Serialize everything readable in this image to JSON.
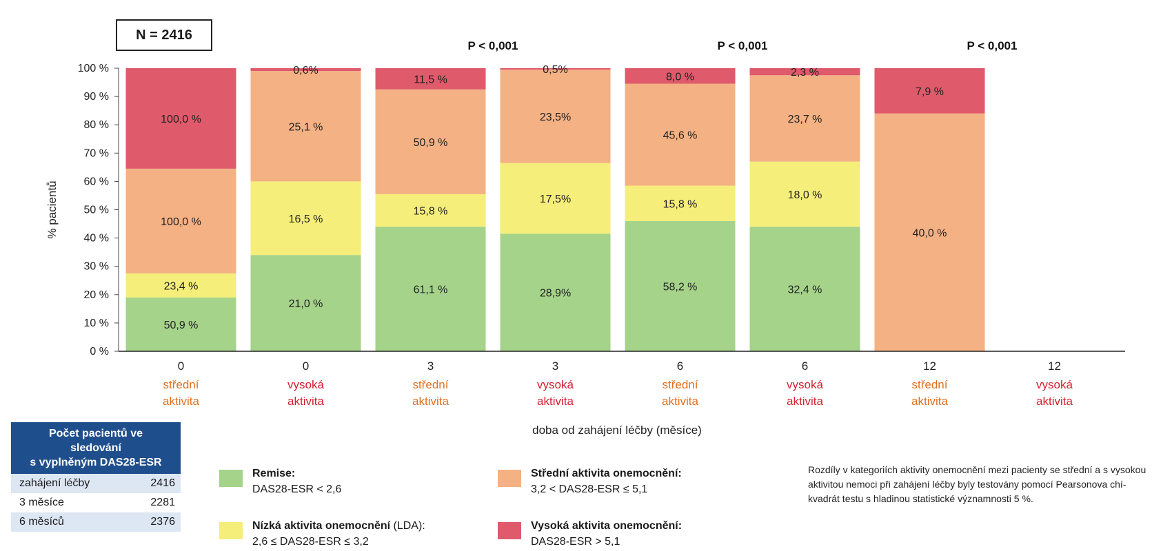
{
  "n_box": "N = 2416",
  "chart_data": {
    "type": "bar",
    "stacked": true,
    "ylabel": "% pacientů",
    "xlabel": "doba od zahájení léčby (měsíce)",
    "ylim": [
      0,
      100
    ],
    "yticks": [
      "0 %",
      "10 %",
      "20 %",
      "30 %",
      "40 %",
      "50 %",
      "60 %",
      "70 %",
      "80 %",
      "90 %",
      "100 %"
    ],
    "categories": [
      {
        "month": "0",
        "group": "střední aktivita",
        "group_lines": [
          "střední",
          "aktivita"
        ],
        "group_color": "#e07020"
      },
      {
        "month": "0",
        "group": "vysoká aktivita",
        "group_lines": [
          "vysoká",
          "aktivita"
        ],
        "group_color": "#d42030"
      },
      {
        "month": "3",
        "group": "střední aktivita",
        "group_lines": [
          "střední",
          "aktivita"
        ],
        "group_color": "#e07020"
      },
      {
        "month": "3",
        "group": "vysoká aktivita",
        "group_lines": [
          "vysoká",
          "aktivita"
        ],
        "group_color": "#d42030"
      },
      {
        "month": "6",
        "group": "střední aktivita",
        "group_lines": [
          "střední",
          "aktivita"
        ],
        "group_color": "#e07020"
      },
      {
        "month": "6",
        "group": "vysoká aktivita",
        "group_lines": [
          "vysoká",
          "aktivita"
        ],
        "group_color": "#d42030"
      },
      {
        "month": "12",
        "group": "střední aktivita",
        "group_lines": [
          "střední",
          "aktivita"
        ],
        "group_color": "#e07020"
      },
      {
        "month": "12",
        "group": "vysoká aktivita",
        "group_lines": [
          "vysoká",
          "aktivita"
        ],
        "group_color": "#d42030"
      }
    ],
    "series": [
      {
        "name": "Remise",
        "color": "#a5d38a",
        "values": [
          19,
          34,
          44,
          41.5,
          46,
          44,
          0,
          0
        ],
        "labels": [
          "50,9 %",
          "21,0 %",
          "61,1 %",
          "28,9%",
          "58,2 %",
          "32,4 %",
          "",
          ""
        ]
      },
      {
        "name": "Nízká aktivita onemocnění",
        "color": "#f5ee7a",
        "values": [
          8.5,
          26,
          11.5,
          25,
          12.5,
          23,
          0,
          0
        ],
        "labels": [
          "23,4 %",
          "16,5 %",
          "15,8 %",
          "17,5%",
          "15,8 %",
          "18,0 %",
          "",
          ""
        ]
      },
      {
        "name": "Střední aktivita onemocnění",
        "color": "#f4b183",
        "values": [
          37,
          39,
          37,
          33,
          36,
          30.5,
          84,
          0
        ],
        "labels": [
          "100,0 %",
          "25,1 %",
          "50,9 %",
          "23,5%",
          "45,6 %",
          "23,7 %",
          "40,0 %",
          ""
        ]
      },
      {
        "name": "Vysoká aktivita onemocnění",
        "color": "#df5a6b",
        "values": [
          35.5,
          1,
          7.5,
          0.5,
          5.5,
          2.5,
          16,
          0
        ],
        "labels": [
          "100,0 %",
          "0,6%",
          "11,5 %",
          "0,5%",
          "8,0 %",
          "2,3 %",
          "7,9 %",
          ""
        ]
      }
    ],
    "p_values": [
      {
        "text": "P < 0,001",
        "month": "3"
      },
      {
        "text": "P < 0,001",
        "month": "6"
      },
      {
        "text": "P < 0,001",
        "month": "12"
      }
    ]
  },
  "count_table": {
    "header": [
      "Počet pacientů ve",
      "sledování",
      "s vyplněným DAS28-ESR"
    ],
    "rows": [
      {
        "label": "zahájení léčby",
        "value": "2416"
      },
      {
        "label": "3 měsíce",
        "value": "2281"
      },
      {
        "label": "6 měsíců",
        "value": "2376"
      }
    ]
  },
  "legend": [
    {
      "name": "Remise:",
      "detail": "DAS28-ESR < 2,6",
      "color": "#a5d38a"
    },
    {
      "name": "Nízká aktivita onemocnění",
      "suffix": " (LDA):",
      "detail": "2,6 ≤ DAS28-ESR ≤ 3,2",
      "color": "#f5ee7a"
    },
    {
      "name": "Střední aktivita onemocnění:",
      "detail": "3,2 < DAS28-ESR ≤ 5,1",
      "color": "#f4b183"
    },
    {
      "name": "Vysoká aktivita onemocnění:",
      "detail": "DAS28-ESR > 5,1",
      "color": "#df5a6b"
    }
  ],
  "footnote": "Rozdíly v kategoriích aktivity onemocnění mezi pacienty se střední a s vysokou aktivitou nemoci při zahájení léčby byly testovány pomocí Pearsonova chí-kvadrát testu s hladinou statistické významnosti 5 %."
}
